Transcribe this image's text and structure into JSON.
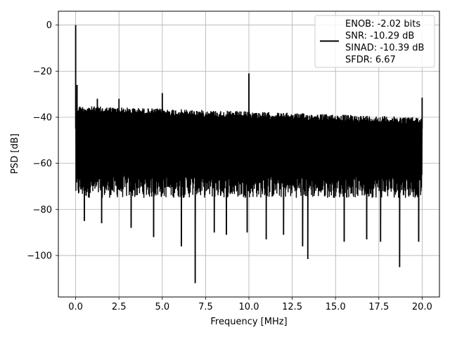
{
  "chart_data": {
    "type": "line",
    "xlabel": "Frequency [MHz]",
    "ylabel": "PSD [dB]",
    "xlim": [
      -1,
      21
    ],
    "ylim": [
      -118,
      6
    ],
    "xticks": [
      0.0,
      2.5,
      5.0,
      7.5,
      10.0,
      12.5,
      15.0,
      17.5,
      20.0
    ],
    "xtick_labels": [
      "0.0",
      "2.5",
      "5.0",
      "7.5",
      "10.0",
      "12.5",
      "15.0",
      "17.5",
      "20.0"
    ],
    "yticks": [
      0,
      -20,
      -40,
      -60,
      -80,
      -100
    ],
    "ytick_labels": [
      "0",
      "−20",
      "−40",
      "−60",
      "−80",
      "−100"
    ],
    "grid": true,
    "line_color": "#000000",
    "legend": {
      "placement": "top-right",
      "lines": [
        "ENOB: -2.02 bits",
        "SNR: -10.29 dB",
        "SINAD: -10.39 dB",
        "SFDR: 6.67"
      ]
    },
    "series": [
      {
        "noise_floor_db": {
          "top_start": -35,
          "top_end": -40,
          "bottom": -75
        },
        "frequency_range_mhz": [
          0,
          20
        ],
        "spurs": [
          {
            "x": 0.0,
            "y": 0.0
          },
          {
            "x": 0.08,
            "y": -26
          },
          {
            "x": 1.25,
            "y": -32
          },
          {
            "x": 2.5,
            "y": -32
          },
          {
            "x": 5.0,
            "y": -29.5
          },
          {
            "x": 10.0,
            "y": -21
          },
          {
            "x": 20.0,
            "y": -31.5
          }
        ],
        "dips": [
          {
            "x": 0.5,
            "y": -85
          },
          {
            "x": 1.5,
            "y": -86
          },
          {
            "x": 3.2,
            "y": -88
          },
          {
            "x": 4.5,
            "y": -92
          },
          {
            "x": 6.1,
            "y": -96
          },
          {
            "x": 6.9,
            "y": -112
          },
          {
            "x": 8.0,
            "y": -90
          },
          {
            "x": 8.7,
            "y": -91
          },
          {
            "x": 9.9,
            "y": -90
          },
          {
            "x": 11.0,
            "y": -93
          },
          {
            "x": 12.0,
            "y": -91
          },
          {
            "x": 13.1,
            "y": -96
          },
          {
            "x": 13.4,
            "y": -101.5
          },
          {
            "x": 15.5,
            "y": -94
          },
          {
            "x": 16.8,
            "y": -93
          },
          {
            "x": 17.6,
            "y": -94
          },
          {
            "x": 18.7,
            "y": -105
          },
          {
            "x": 19.8,
            "y": -94
          }
        ]
      }
    ]
  }
}
